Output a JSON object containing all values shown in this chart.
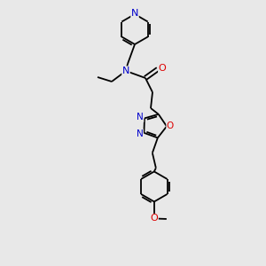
{
  "bg_color": "#e8e8e8",
  "bond_color": "#000000",
  "N_color": "#0000cc",
  "O_color": "#dd0000",
  "font_size": 7.5,
  "line_width": 1.3,
  "fig_w": 3.0,
  "fig_h": 3.0,
  "dpi": 100,
  "xlim": [
    0,
    300
  ],
  "ylim": [
    0,
    300
  ]
}
